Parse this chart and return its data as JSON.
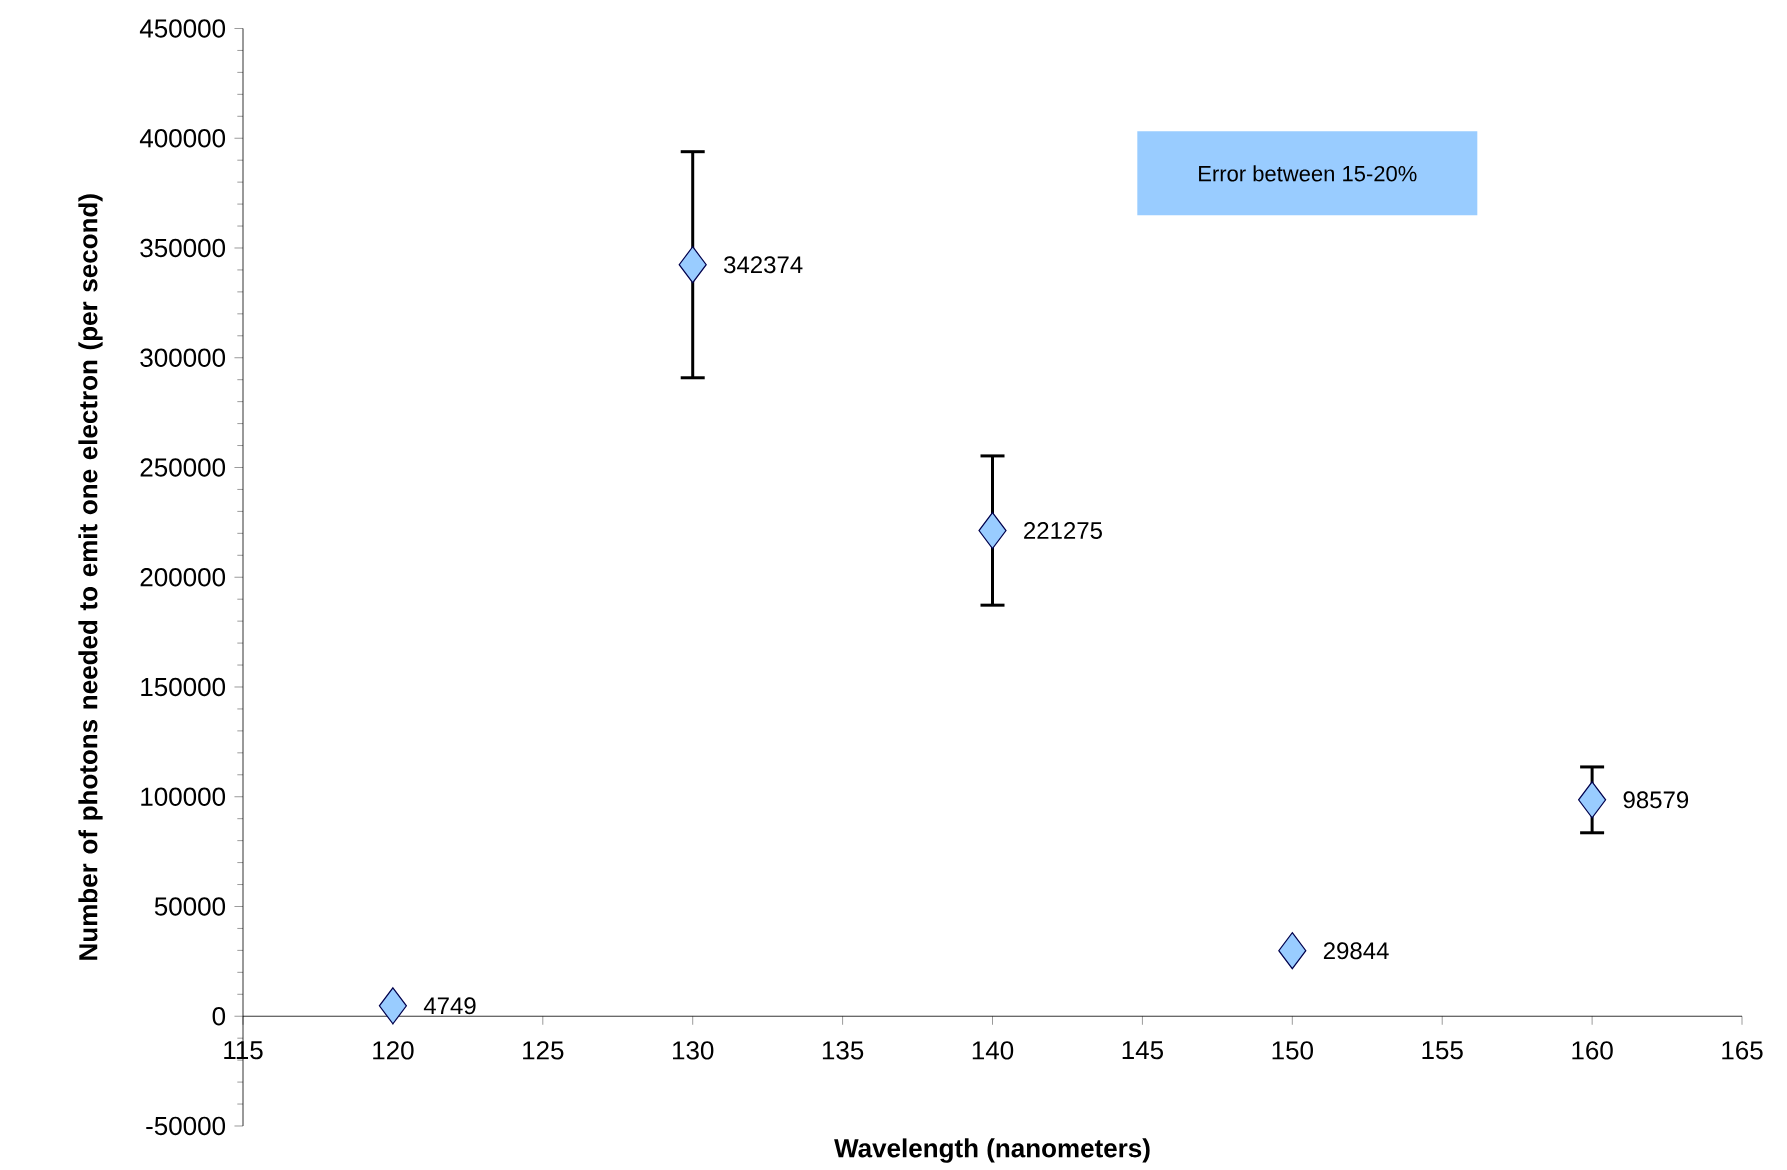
{
  "chart_data": {
    "type": "scatter",
    "xlabel": "Wavelength (nanometers)",
    "ylabel": "Number of photons needed to emit one electron (per second)",
    "annotations": [
      "Error between 15-20%"
    ],
    "x": [
      120,
      130,
      140,
      150,
      160
    ],
    "values": [
      4749,
      342374,
      221275,
      29844,
      98579
    ],
    "errors": [
      null,
      51500,
      34000,
      null,
      15000
    ],
    "color": "#99ccff",
    "marker": "diamond",
    "data_labels": true,
    "xlim": [
      115,
      165
    ],
    "xticks": [
      115,
      120,
      125,
      130,
      135,
      140,
      145,
      150,
      155,
      160,
      165
    ],
    "ylim": [
      -50000,
      450000
    ],
    "yticks": [
      -50000,
      0,
      50000,
      100000,
      150000,
      200000,
      250000,
      300000,
      350000,
      400000,
      450000
    ]
  }
}
